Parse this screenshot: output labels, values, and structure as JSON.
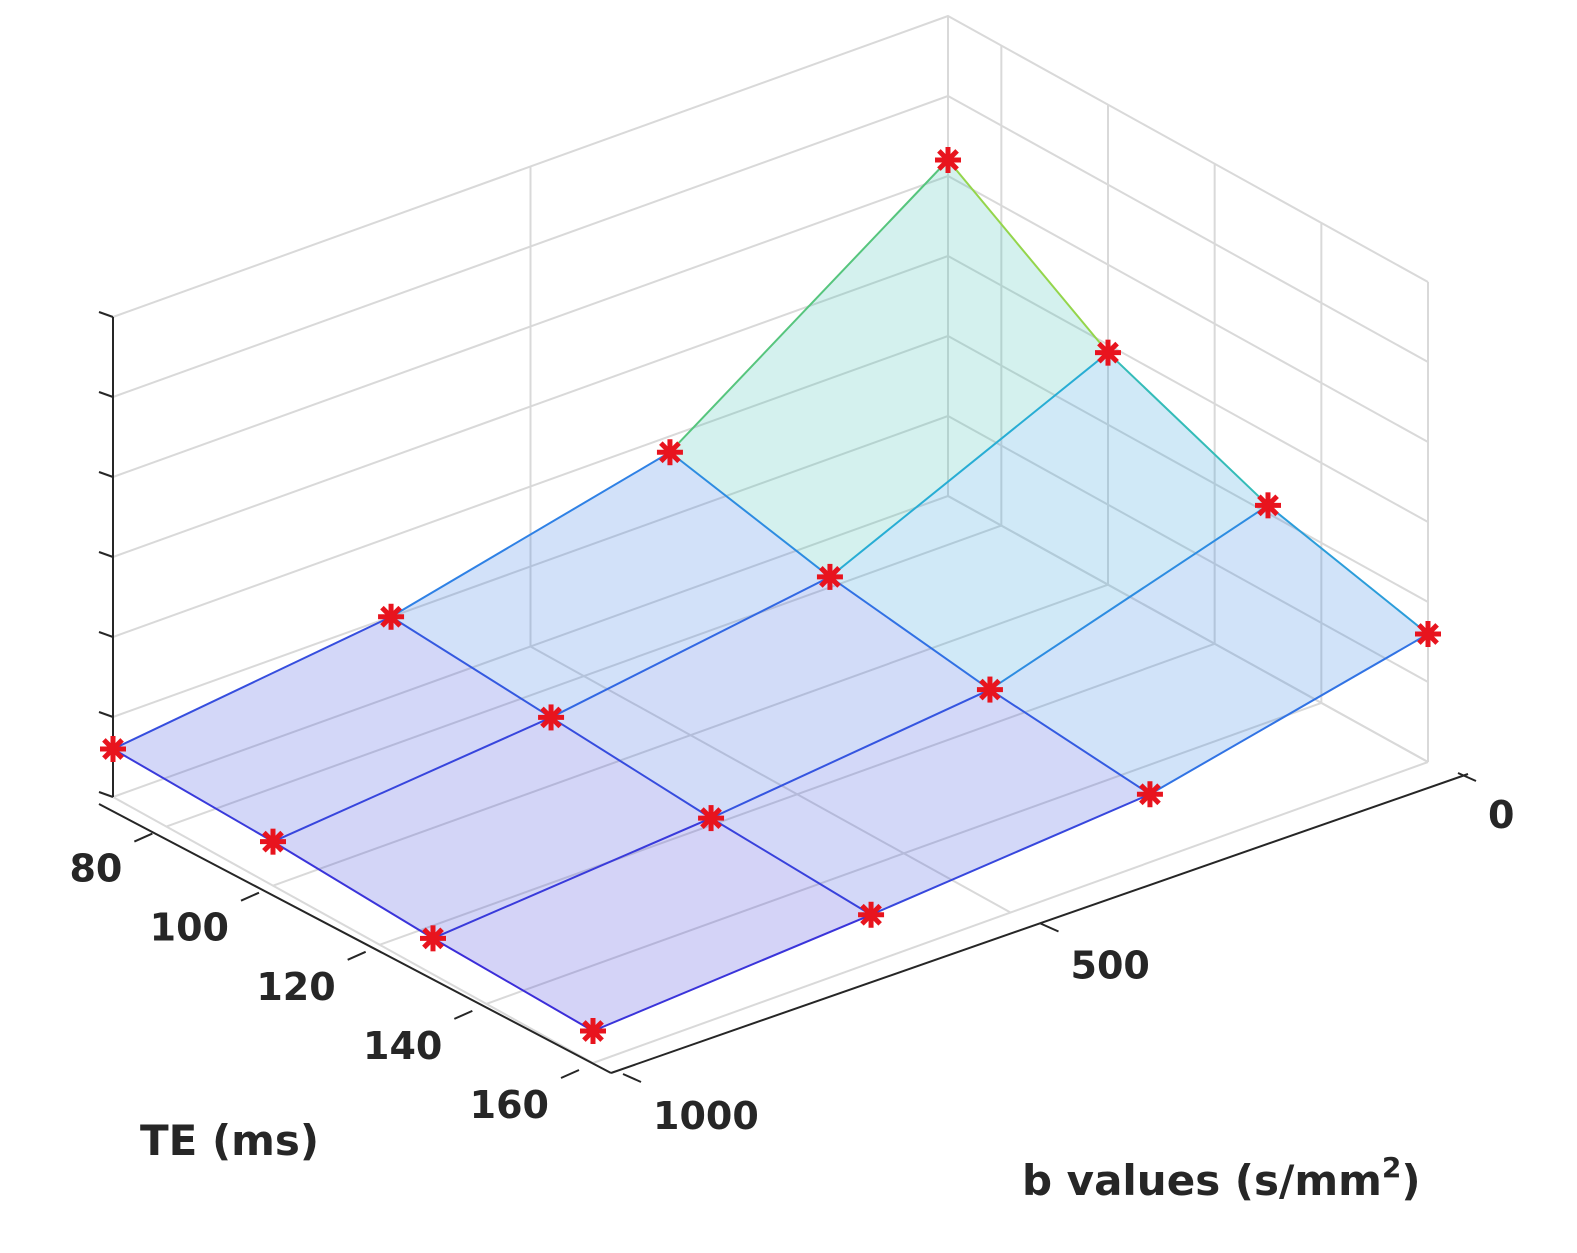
{
  "chart_data": {
    "type": "surface",
    "title": "",
    "xlabel": "TE (ms)",
    "ylabel_prefix": "b values (s/mm",
    "ylabel_sup": "2",
    "ylabel_suffix": ")",
    "zlabel": "",
    "te_values": [
      70,
      100,
      130,
      160
    ],
    "b_values": [
      0,
      333,
      667,
      1000
    ],
    "te_ticks": [
      80,
      100,
      120,
      140,
      160
    ],
    "b_ticks": [
      0,
      500,
      1000
    ],
    "te_lim": [
      70,
      160
    ],
    "b_lim": [
      0,
      1000
    ],
    "z_lim": [
      0,
      6
    ],
    "z_tick_count": 7,
    "grid": true,
    "marker": "*",
    "marker_color": "#e8141e",
    "colormap": [
      "#3b2bd9",
      "#2f7ee6",
      "#27b8d0",
      "#67c95f",
      "#f5f020"
    ],
    "z": [
      [
        4.2,
        1.8,
        1.0,
        0.6
      ],
      [
        2.9,
        1.35,
        0.85,
        0.55
      ],
      [
        2.1,
        1.05,
        0.7,
        0.45
      ],
      [
        1.6,
        0.85,
        0.6,
        0.4
      ]
    ]
  }
}
